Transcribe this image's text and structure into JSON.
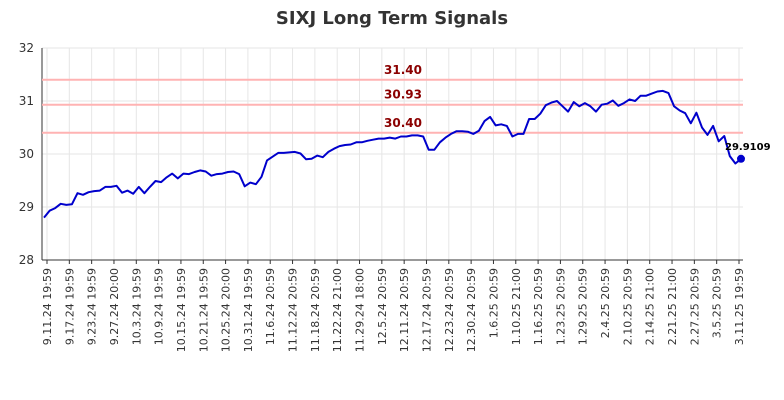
{
  "chart_data": {
    "type": "line",
    "title": "SIXJ Long Term Signals",
    "xlabel": "",
    "ylabel": "",
    "ylim": [
      28,
      32
    ],
    "y_ticks": [
      28,
      29,
      30,
      31,
      32
    ],
    "grid": true,
    "x_tick_labels": [
      "9.11.24 19:59",
      "9.17.24 19:59",
      "9.23.24 19:59",
      "9.27.24 20:00",
      "10.3.24 19:59",
      "10.9.24 19:59",
      "10.15.24 19:59",
      "10.21.24 19:59",
      "10.25.24 20:00",
      "10.31.24 19:59",
      "11.6.24 20:59",
      "11.12.24 20:59",
      "11.18.24 20:59",
      "11.22.24 21:00",
      "11.29.24 18:00",
      "12.5.24 20:59",
      "12.11.24 20:59",
      "12.17.24 20:59",
      "12.23.24 20:59",
      "12.30.24 20:59",
      "1.6.25 20:59",
      "1.10.25 21:00",
      "1.16.25 20:59",
      "1.23.25 20:59",
      "1.29.25 20:59",
      "2.4.25 20:59",
      "2.10.25 20:59",
      "2.14.25 21:00",
      "2.21.25 21:00",
      "2.27.25 20:59",
      "3.5.25 20:59",
      "3.11.25 19:59"
    ],
    "levels": [
      {
        "value": 31.4,
        "label": "31.40"
      },
      {
        "value": 30.93,
        "label": "30.93"
      },
      {
        "value": 30.4,
        "label": "30.40"
      }
    ],
    "last_value_label": "29.9109",
    "series": [
      {
        "values": [
          28.8,
          28.93,
          28.98,
          29.06,
          29.04,
          29.05,
          29.26,
          29.23,
          29.28,
          29.3,
          29.31,
          29.38,
          29.38,
          29.4,
          29.27,
          29.31,
          29.25,
          29.38,
          29.26,
          29.38,
          29.49,
          29.47,
          29.56,
          29.63,
          29.54,
          29.63,
          29.62,
          29.66,
          29.69,
          29.67,
          29.59,
          29.62,
          29.63,
          29.66,
          29.67,
          29.62,
          29.39,
          29.46,
          29.43,
          29.57,
          29.88,
          29.95,
          30.02,
          30.02,
          30.03,
          30.04,
          30.01,
          29.9,
          29.91,
          29.97,
          29.94,
          30.04,
          30.1,
          30.15,
          30.17,
          30.18,
          30.22,
          30.22,
          30.25,
          30.27,
          30.29,
          30.29,
          30.31,
          30.29,
          30.33,
          30.33,
          30.35,
          30.35,
          30.33,
          30.08,
          30.08,
          30.22,
          30.31,
          30.38,
          30.43,
          30.43,
          30.42,
          30.38,
          30.44,
          30.62,
          30.7,
          30.54,
          30.56,
          30.53,
          30.33,
          30.38,
          30.38,
          30.66,
          30.66,
          30.76,
          30.92,
          30.97,
          31.0,
          30.9,
          30.8,
          30.98,
          30.9,
          30.96,
          30.9,
          30.8,
          30.93,
          30.95,
          31.01,
          30.91,
          30.96,
          31.03,
          31.0,
          31.1,
          31.1,
          31.14,
          31.18,
          31.19,
          31.15,
          30.9,
          30.82,
          30.77,
          30.58,
          30.78,
          30.5,
          30.36,
          30.53,
          30.24,
          30.34,
          29.96,
          29.82,
          29.91
        ]
      }
    ]
  },
  "colors": {
    "line": "#0000cc",
    "level_line": "#ffb3b3",
    "level_text": "#8b0000",
    "grid": "#e6e6e6",
    "axis": "#333333"
  }
}
